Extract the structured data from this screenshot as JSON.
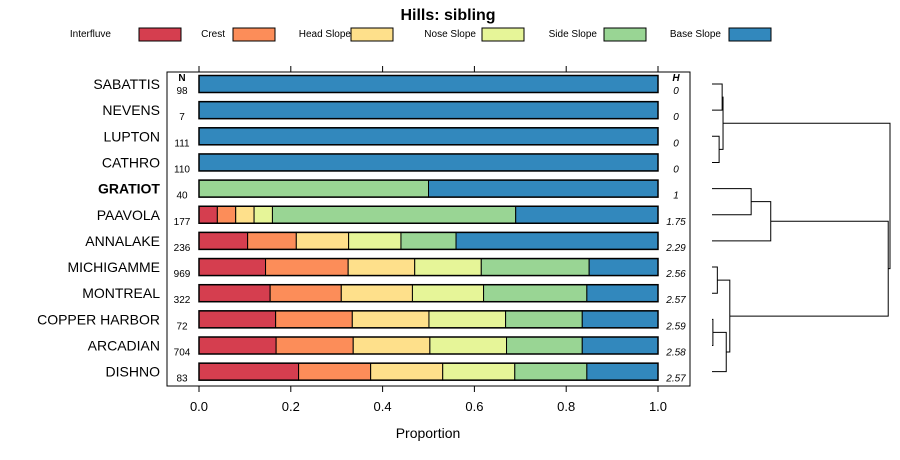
{
  "chart_data": {
    "type": "bar",
    "orientation": "horizontal",
    "stacked": true,
    "title": "Hills: sibling",
    "xlabel": "Proportion",
    "ylabel": "",
    "xlim": [
      0,
      1
    ],
    "x_ticks": [
      "0.0",
      "0.2",
      "0.4",
      "0.6",
      "0.8",
      "1.0"
    ],
    "n_header": "N",
    "h_header": "H",
    "legend_position": "top",
    "series": [
      {
        "name": "Interfluve",
        "color": "#d53e4f"
      },
      {
        "name": "Crest",
        "color": "#fc8d59"
      },
      {
        "name": "Head Slope",
        "color": "#fee08b"
      },
      {
        "name": "Nose Slope",
        "color": "#e6f598"
      },
      {
        "name": "Side Slope",
        "color": "#99d594"
      },
      {
        "name": "Base Slope",
        "color": "#3288bd"
      }
    ],
    "rows": [
      {
        "label": "SABATTIS",
        "n": "98",
        "h": "0",
        "bold": false,
        "values": [
          0,
          0,
          0,
          0,
          0,
          1.0
        ]
      },
      {
        "label": "NEVENS",
        "n": "7",
        "h": "0",
        "bold": false,
        "values": [
          0,
          0,
          0,
          0,
          0,
          1.0
        ]
      },
      {
        "label": "LUPTON",
        "n": "111",
        "h": "0",
        "bold": false,
        "values": [
          0,
          0,
          0,
          0,
          0,
          1.0
        ]
      },
      {
        "label": "CATHRO",
        "n": "110",
        "h": "0",
        "bold": false,
        "values": [
          0,
          0,
          0,
          0,
          0,
          1.0
        ]
      },
      {
        "label": "GRATIOT",
        "n": "40",
        "h": "1",
        "bold": true,
        "values": [
          0,
          0,
          0,
          0,
          0.5,
          0.5
        ]
      },
      {
        "label": "PAAVOLA",
        "n": "177",
        "h": "1.75",
        "bold": false,
        "values": [
          0.04,
          0.04,
          0.04,
          0.04,
          0.53,
          0.31
        ]
      },
      {
        "label": "ANNALAKE",
        "n": "236",
        "h": "2.29",
        "bold": false,
        "values": [
          0.106,
          0.106,
          0.114,
          0.114,
          0.12,
          0.44
        ]
      },
      {
        "label": "MICHIGAMME",
        "n": "969",
        "h": "2.56",
        "bold": false,
        "values": [
          0.145,
          0.18,
          0.145,
          0.145,
          0.235,
          0.15
        ]
      },
      {
        "label": "MONTREAL",
        "n": "322",
        "h": "2.57",
        "bold": false,
        "values": [
          0.155,
          0.155,
          0.155,
          0.155,
          0.225,
          0.155
        ]
      },
      {
        "label": "COPPER HARBOR",
        "n": "72",
        "h": "2.59",
        "bold": false,
        "values": [
          0.167,
          0.167,
          0.167,
          0.167,
          0.167,
          0.165
        ]
      },
      {
        "label": "ARCADIAN",
        "n": "704",
        "h": "2.58",
        "bold": false,
        "values": [
          0.168,
          0.168,
          0.167,
          0.167,
          0.165,
          0.165
        ]
      },
      {
        "label": "DISHNO",
        "n": "83",
        "h": "2.57",
        "bold": false,
        "values": [
          0.217,
          0.157,
          0.157,
          0.157,
          0.157,
          0.155
        ]
      }
    ]
  }
}
